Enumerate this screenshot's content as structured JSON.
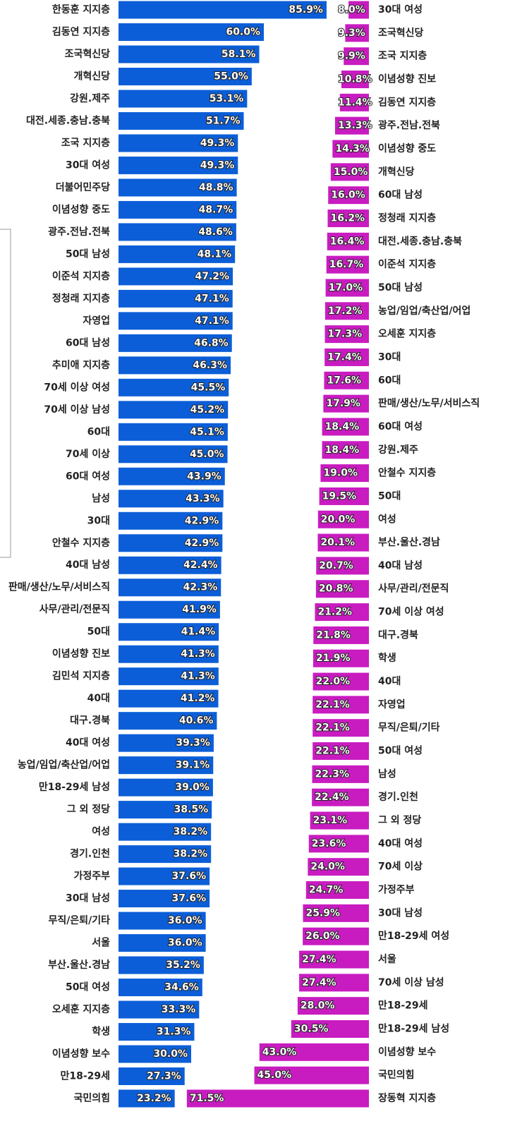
{
  "chart_data": [
    {
      "type": "hbar",
      "color": "#0b5ed7",
      "categories": [
        "한동훈 지지층",
        "김동연 지지층",
        "조국혁신당",
        "개혁신당",
        "강원.제주",
        "대전.세종.충남.충북",
        "조국 지지층",
        "30대 여성",
        "더불어민주당",
        "이념성향 중도",
        "광주.전남.전북",
        "50대 남성",
        "이준석 지지층",
        "정청래 지지층",
        "자영업",
        "60대 남성",
        "추미애 지지층",
        "70세 이상 여성",
        "70세 이상 남성",
        "60대",
        "70세 이상",
        "60대 여성",
        "남성",
        "30대",
        "안철수 지지층",
        "40대 남성",
        "판매/생산/노무/서비스직",
        "사무/관리/전문직",
        "50대",
        "이념성향 진보",
        "김민석 지지층",
        "40대",
        "대구.경북",
        "40대 여성",
        "농업/임업/축산업/어업",
        "만18-29세 남성",
        "그 외 정당",
        "여성",
        "경기.인천",
        "가정주부",
        "30대 남성",
        "무직/은퇴/기타",
        "서울",
        "부산.울산.경남",
        "50대 여성",
        "오세훈 지지층",
        "학생",
        "이념성향 보수",
        "만18-29세",
        "국민의힘"
      ],
      "values": [
        85.9,
        60.0,
        58.1,
        55.0,
        53.1,
        51.7,
        49.3,
        49.3,
        48.8,
        48.7,
        48.6,
        48.1,
        47.2,
        47.1,
        47.1,
        46.8,
        46.3,
        45.5,
        45.2,
        45.1,
        45.0,
        43.9,
        43.3,
        42.9,
        42.9,
        42.4,
        42.3,
        41.9,
        41.4,
        41.3,
        41.3,
        41.2,
        40.6,
        39.3,
        39.1,
        39.0,
        38.5,
        38.2,
        38.2,
        37.6,
        37.6,
        36.0,
        36.0,
        35.2,
        34.6,
        33.3,
        31.3,
        30.0,
        27.3,
        23.2
      ],
      "value_labels": [
        "85.9%",
        "60.0%",
        "58.1%",
        "55.0%",
        "53.1%",
        "51.7%",
        "49.3%",
        "49.3%",
        "48.8%",
        "48.7%",
        "48.6%",
        "48.1%",
        "47.2%",
        "47.1%",
        "47.1%",
        "46.8%",
        "46.3%",
        "45.5%",
        "45.2%",
        "45.1%",
        "45.0%",
        "43.9%",
        "43.3%",
        "42.9%",
        "42.9%",
        "42.4%",
        "42.3%",
        "41.9%",
        "41.4%",
        "41.3%",
        "41.3%",
        "41.2%",
        "40.6%",
        "39.3%",
        "39.1%",
        "39.0%",
        "38.5%",
        "38.2%",
        "38.2%",
        "37.6%",
        "37.6%",
        "36.0%",
        "36.0%",
        "35.2%",
        "34.6%",
        "33.3%",
        "31.3%",
        "30.0%",
        "27.3%",
        "23.2%"
      ]
    },
    {
      "type": "hbar-reverse",
      "color": "#c81cc0",
      "categories": [
        "30대 여성",
        "조국혁신당",
        "조국 지지층",
        "이념성향 진보",
        "김동연 지지층",
        "광주.전남.전북",
        "이념성향 중도",
        "개혁신당",
        "60대 남성",
        "정청래 지지층",
        "대전.세종.충남.충북",
        "이준석 지지층",
        "50대 남성",
        "농업/임업/축산업/어업",
        "오세훈 지지층",
        "30대",
        "60대",
        "판매/생산/노무/서비스직",
        "60대 여성",
        "강원.제주",
        "안철수 지지층",
        "50대",
        "여성",
        "부산.울산.경남",
        "40대 남성",
        "사무/관리/전문직",
        "70세 이상 여성",
        "대구.경북",
        "학생",
        "40대",
        "자영업",
        "무직/은퇴/기타",
        "50대 여성",
        "남성",
        "경기.인천",
        "그 외 정당",
        "40대 여성",
        "70세 이상",
        "가정주부",
        "30대 남성",
        "만18-29세 여성",
        "서울",
        "70세 이상 남성",
        "만18-29세",
        "만18-29세 남성",
        "이념성향 보수",
        "국민의힘",
        "장동혁 지지층"
      ],
      "values": [
        8.0,
        9.3,
        9.9,
        10.8,
        11.4,
        13.3,
        14.3,
        15.0,
        16.0,
        16.2,
        16.4,
        16.7,
        17.0,
        17.2,
        17.3,
        17.4,
        17.6,
        17.9,
        18.4,
        18.4,
        19.0,
        19.5,
        20.0,
        20.1,
        20.7,
        20.8,
        21.2,
        21.8,
        21.9,
        22.0,
        22.1,
        22.1,
        22.1,
        22.3,
        22.4,
        23.1,
        23.6,
        24.0,
        24.7,
        25.9,
        26.0,
        27.4,
        27.4,
        28.0,
        30.5,
        43.0,
        45.0,
        71.5
      ],
      "value_labels": [
        "8.0%",
        "9.3%",
        "9.9%",
        "10.8%",
        "11.4%",
        "13.3%",
        "14.3%",
        "15.0%",
        "16.0%",
        "16.2%",
        "16.4%",
        "16.7%",
        "17.0%",
        "17.2%",
        "17.3%",
        "17.4%",
        "17.6%",
        "17.9%",
        "18.4%",
        "18.4%",
        "19.0%",
        "19.5%",
        "20.0%",
        "20.1%",
        "20.7%",
        "20.8%",
        "21.2%",
        "21.8%",
        "21.9%",
        "22.0%",
        "22.1%",
        "22.1%",
        "22.1%",
        "22.3%",
        "22.4%",
        "23.1%",
        "23.6%",
        "24.0%",
        "24.7%",
        "25.9%",
        "26.0%",
        "27.4%",
        "27.4%",
        "28.0%",
        "30.5%",
        "43.0%",
        "45.0%",
        "71.5%"
      ]
    }
  ]
}
